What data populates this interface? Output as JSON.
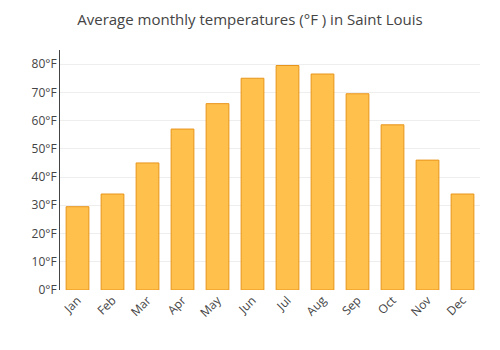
{
  "chart_data": {
    "type": "bar",
    "title": "Average monthly temperatures (°F ) in Saint Louis",
    "categories": [
      "Jan",
      "Feb",
      "Mar",
      "Apr",
      "May",
      "Jun",
      "Jul",
      "Aug",
      "Sep",
      "Oct",
      "Nov",
      "Dec"
    ],
    "values": [
      29.5,
      34.0,
      45.0,
      57.0,
      66.0,
      75.0,
      79.5,
      76.5,
      69.5,
      58.5,
      46.0,
      34.0
    ],
    "color": "#FFC04C",
    "ylim": [
      0,
      85
    ],
    "yticks": [
      {
        "value": 0,
        "label": "0°F"
      },
      {
        "value": 10,
        "label": "10°F"
      },
      {
        "value": 20,
        "label": "20°F"
      },
      {
        "value": 30,
        "label": "30°F"
      },
      {
        "value": 40,
        "label": "40°F"
      },
      {
        "value": 50,
        "label": "50°F"
      },
      {
        "value": 60,
        "label": "60°F"
      },
      {
        "value": 70,
        "label": "70°F"
      },
      {
        "value": 80,
        "label": "80°F"
      }
    ],
    "grid": true
  }
}
